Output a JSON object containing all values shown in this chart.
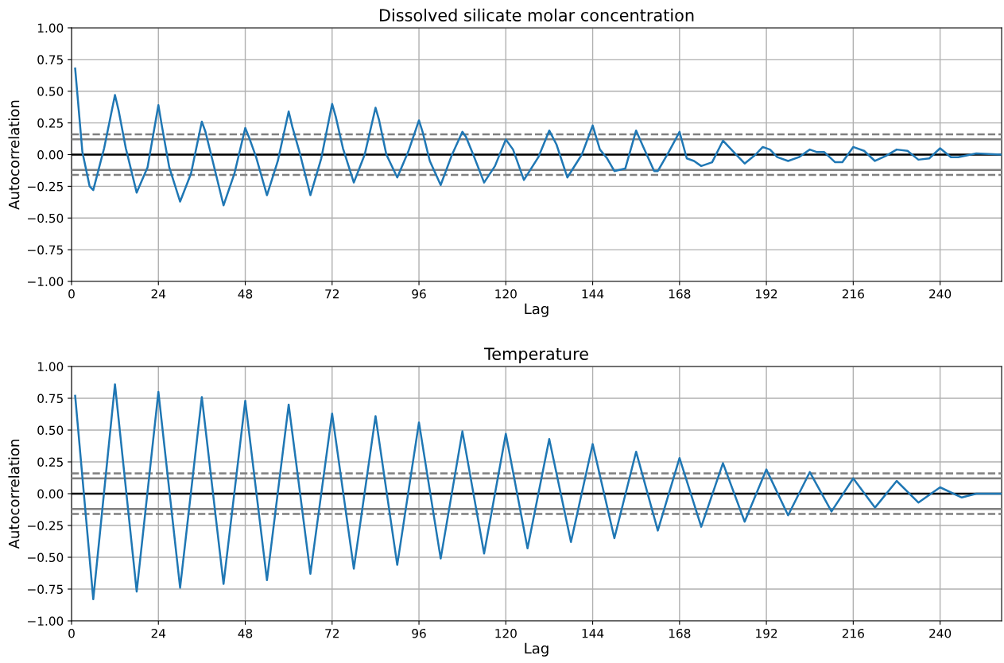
{
  "chart_data": [
    {
      "type": "line",
      "title": "Dissolved silicate molar concentration",
      "xlabel": "Lag",
      "ylabel": "Autocorrelation",
      "x": [
        1,
        3,
        5,
        6,
        9,
        12,
        13,
        15,
        18,
        21,
        24,
        25,
        27,
        30,
        33,
        36,
        37,
        39,
        42,
        45,
        48,
        49,
        51,
        54,
        57,
        60,
        61,
        63,
        66,
        69,
        72,
        73,
        75,
        78,
        81,
        84,
        85,
        87,
        90,
        93,
        96,
        97,
        99,
        102,
        105,
        108,
        109,
        111,
        114,
        117,
        120,
        122,
        125,
        129,
        132,
        134,
        137,
        141,
        144,
        146,
        148,
        150,
        153,
        156,
        158,
        161,
        162,
        165,
        168,
        170,
        172,
        174,
        177,
        180,
        183,
        186,
        189,
        191,
        193,
        195,
        198,
        201,
        204,
        206,
        208,
        211,
        213,
        216,
        219,
        222,
        225,
        228,
        231,
        234,
        237,
        240,
        243,
        245,
        250,
        257
      ],
      "series": [
        {
          "color": "#1f77b4",
          "values": [
            0.68,
            0.02,
            -0.25,
            -0.28,
            0.05,
            0.47,
            0.35,
            0.05,
            -0.3,
            -0.1,
            0.39,
            0.22,
            -0.1,
            -0.37,
            -0.15,
            0.26,
            0.18,
            -0.05,
            -0.4,
            -0.15,
            0.21,
            0.14,
            -0.02,
            -0.32,
            -0.05,
            0.34,
            0.22,
            0.02,
            -0.32,
            -0.03,
            0.4,
            0.3,
            0.05,
            -0.22,
            0.0,
            0.37,
            0.27,
            0.0,
            -0.18,
            0.02,
            0.27,
            0.18,
            -0.05,
            -0.24,
            -0.01,
            0.18,
            0.14,
            0.0,
            -0.22,
            -0.09,
            0.12,
            0.04,
            -0.2,
            -0.02,
            0.19,
            0.08,
            -0.18,
            0.0,
            0.23,
            0.04,
            -0.03,
            -0.13,
            -0.11,
            0.19,
            0.06,
            -0.13,
            -0.13,
            0.02,
            0.18,
            -0.03,
            -0.05,
            -0.09,
            -0.06,
            0.11,
            0.02,
            -0.07,
            0.0,
            0.06,
            0.04,
            -0.02,
            -0.05,
            -0.02,
            0.04,
            0.02,
            0.02,
            -0.06,
            -0.06,
            0.06,
            0.03,
            -0.05,
            -0.01,
            0.04,
            0.03,
            -0.04,
            -0.03,
            0.05,
            -0.02,
            -0.02,
            0.01,
            0.0
          ]
        }
      ],
      "xlim": [
        0,
        257
      ],
      "xticks": [
        0,
        24,
        48,
        72,
        96,
        120,
        144,
        168,
        192,
        216,
        240
      ],
      "ylim": [
        -1.0,
        1.0
      ],
      "yticks": [
        {
          "value": -1.0,
          "label": "−1.00"
        },
        {
          "value": -0.75,
          "label": "−0.75"
        },
        {
          "value": -0.5,
          "label": "−0.50"
        },
        {
          "value": -0.25,
          "label": "−0.25"
        },
        {
          "value": 0.0,
          "label": "0.00"
        },
        {
          "value": 0.25,
          "label": "0.25"
        },
        {
          "value": 0.5,
          "label": "0.50"
        },
        {
          "value": 0.75,
          "label": "0.75"
        },
        {
          "value": 1.0,
          "label": "1.00"
        }
      ],
      "grid": true,
      "ref_lines": [
        {
          "axis": "y",
          "value": 0.16,
          "color": "#808080",
          "line_style": "dashed"
        },
        {
          "axis": "y",
          "value": 0.12,
          "color": "#808080",
          "line_style": "solid"
        },
        {
          "axis": "y",
          "value": 0.0,
          "color": "#000000",
          "line_style": "solid"
        },
        {
          "axis": "y",
          "value": -0.12,
          "color": "#808080",
          "line_style": "solid"
        },
        {
          "axis": "y",
          "value": -0.16,
          "color": "#808080",
          "line_style": "dashed"
        }
      ]
    },
    {
      "type": "line",
      "title": "Temperature",
      "xlabel": "Lag",
      "ylabel": "Autocorrelation",
      "x": [
        1,
        6,
        12,
        18,
        24,
        30,
        36,
        42,
        48,
        54,
        60,
        66,
        72,
        78,
        84,
        90,
        96,
        102,
        108,
        114,
        120,
        126,
        132,
        138,
        144,
        150,
        156,
        162,
        168,
        174,
        180,
        186,
        192,
        198,
        204,
        210,
        216,
        222,
        228,
        234,
        240,
        246,
        250,
        257
      ],
      "series": [
        {
          "color": "#1f77b4",
          "values": [
            0.77,
            -0.83,
            0.86,
            -0.77,
            0.8,
            -0.74,
            0.76,
            -0.71,
            0.73,
            -0.68,
            0.7,
            -0.63,
            0.63,
            -0.59,
            0.61,
            -0.56,
            0.56,
            -0.51,
            0.49,
            -0.47,
            0.47,
            -0.43,
            0.43,
            -0.38,
            0.39,
            -0.35,
            0.33,
            -0.29,
            0.28,
            -0.26,
            0.24,
            -0.22,
            0.19,
            -0.17,
            0.17,
            -0.14,
            0.12,
            -0.11,
            0.1,
            -0.07,
            0.05,
            -0.03,
            0.0,
            0.0
          ]
        }
      ],
      "xlim": [
        0,
        257
      ],
      "xticks": [
        0,
        24,
        48,
        72,
        96,
        120,
        144,
        168,
        192,
        216,
        240
      ],
      "ylim": [
        -1.0,
        1.0
      ],
      "yticks": [
        {
          "value": -1.0,
          "label": "−1.00"
        },
        {
          "value": -0.75,
          "label": "−0.75"
        },
        {
          "value": -0.5,
          "label": "−0.50"
        },
        {
          "value": -0.25,
          "label": "−0.25"
        },
        {
          "value": 0.0,
          "label": "0.00"
        },
        {
          "value": 0.25,
          "label": "0.25"
        },
        {
          "value": 0.5,
          "label": "0.50"
        },
        {
          "value": 0.75,
          "label": "0.75"
        },
        {
          "value": 1.0,
          "label": "1.00"
        }
      ],
      "grid": true,
      "ref_lines": [
        {
          "axis": "y",
          "value": 0.16,
          "color": "#808080",
          "line_style": "dashed"
        },
        {
          "axis": "y",
          "value": 0.12,
          "color": "#808080",
          "line_style": "solid"
        },
        {
          "axis": "y",
          "value": 0.0,
          "color": "#000000",
          "line_style": "solid"
        },
        {
          "axis": "y",
          "value": -0.12,
          "color": "#808080",
          "line_style": "solid"
        },
        {
          "axis": "y",
          "value": -0.16,
          "color": "#808080",
          "line_style": "dashed"
        }
      ]
    }
  ]
}
